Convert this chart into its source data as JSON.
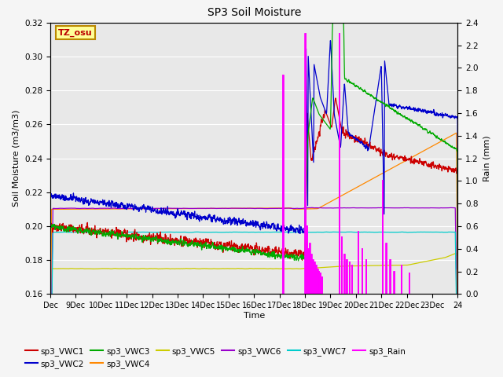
{
  "title": "SP3 Soil Moisture",
  "xlabel": "Time",
  "ylabel_left": "Soil Moisture (m3/m3)",
  "ylabel_right": "Rain (mm)",
  "ylim_left": [
    0.16,
    0.32
  ],
  "ylim_right": [
    0.0,
    2.4
  ],
  "annotation_text": "TZ_osu",
  "annotation_color": "#bb0000",
  "annotation_bg": "#ffff99",
  "annotation_border": "#bb8800",
  "plot_bg": "#e8e8e8",
  "fig_bg": "#f5f5f5",
  "grid_color": "#ffffff",
  "series_colors": {
    "VWC1": "#cc0000",
    "VWC2": "#0000cc",
    "VWC3": "#00aa00",
    "VWC4": "#ff8800",
    "VWC5": "#cccc00",
    "VWC6": "#9900cc",
    "VWC7": "#00cccc",
    "Rain": "#ff00ff"
  },
  "xtick_labels": [
    "Dec",
    "9Dec",
    "10Dec",
    "11Dec",
    "12Dec",
    "13Dec",
    "14Dec",
    "15Dec",
    "16Dec",
    "17Dec",
    "18Dec",
    "19Dec",
    "20Dec",
    "21Dec",
    "22Dec",
    "23Dec",
    "24"
  ],
  "yticks_left": [
    0.16,
    0.18,
    0.2,
    0.22,
    0.24,
    0.26,
    0.28,
    0.3,
    0.32
  ],
  "yticks_right": [
    0.0,
    0.2,
    0.4,
    0.6,
    0.8,
    1.0,
    1.2,
    1.4,
    1.6,
    1.8,
    2.0,
    2.2,
    2.4
  ]
}
